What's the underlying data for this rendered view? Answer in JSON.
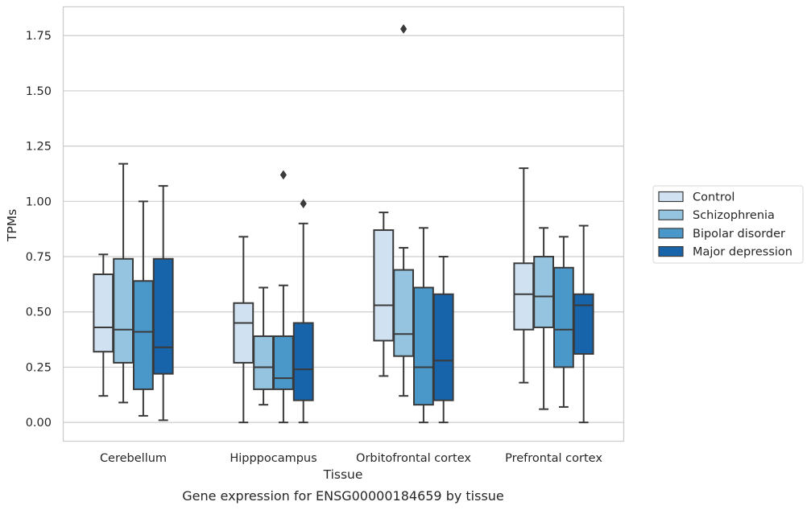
{
  "chart_data": {
    "type": "boxplot",
    "title": "Gene expression for ENSG00000184659 by tissue",
    "xlabel": "Tissue",
    "ylabel": "TPMs",
    "ylim": [
      -0.085,
      1.88
    ],
    "yticks": [
      0.0,
      0.25,
      0.5,
      0.75,
      1.0,
      1.25,
      1.5,
      1.75
    ],
    "ytick_labels": [
      "0.00",
      "0.25",
      "0.50",
      "0.75",
      "1.00",
      "1.25",
      "1.50",
      "1.75"
    ],
    "grid": true,
    "legend_position": "right",
    "categories": [
      "Cerebellum",
      "Hipppocampus",
      "Orbitofrontal cortex",
      "Prefrontal cortex"
    ],
    "series": [
      {
        "name": "Control",
        "color": "#d0e1f2",
        "boxes": [
          {
            "whislo": 0.12,
            "q1": 0.32,
            "med": 0.43,
            "q3": 0.67,
            "whishi": 0.76,
            "fliers": []
          },
          {
            "whislo": 0.0,
            "q1": 0.27,
            "med": 0.45,
            "q3": 0.54,
            "whishi": 0.84,
            "fliers": []
          },
          {
            "whislo": 0.21,
            "q1": 0.37,
            "med": 0.53,
            "q3": 0.87,
            "whishi": 0.95,
            "fliers": []
          },
          {
            "whislo": 0.18,
            "q1": 0.42,
            "med": 0.58,
            "q3": 0.72,
            "whishi": 1.15,
            "fliers": []
          }
        ]
      },
      {
        "name": "Schizophrenia",
        "color": "#94c4df",
        "boxes": [
          {
            "whislo": 0.09,
            "q1": 0.27,
            "med": 0.42,
            "q3": 0.74,
            "whishi": 1.17,
            "fliers": []
          },
          {
            "whislo": 0.08,
            "q1": 0.15,
            "med": 0.25,
            "q3": 0.39,
            "whishi": 0.61,
            "fliers": []
          },
          {
            "whislo": 0.12,
            "q1": 0.3,
            "med": 0.4,
            "q3": 0.69,
            "whishi": 0.79,
            "fliers": [
              1.78
            ]
          },
          {
            "whislo": 0.06,
            "q1": 0.43,
            "med": 0.57,
            "q3": 0.75,
            "whishi": 0.88,
            "fliers": []
          }
        ]
      },
      {
        "name": "Bipolar disorder",
        "color": "#4a98c9",
        "boxes": [
          {
            "whislo": 0.03,
            "q1": 0.15,
            "med": 0.41,
            "q3": 0.64,
            "whishi": 1.0,
            "fliers": []
          },
          {
            "whislo": 0.0,
            "q1": 0.15,
            "med": 0.2,
            "q3": 0.39,
            "whishi": 0.62,
            "fliers": [
              1.12
            ]
          },
          {
            "whislo": 0.0,
            "q1": 0.08,
            "med": 0.25,
            "q3": 0.61,
            "whishi": 0.88,
            "fliers": []
          },
          {
            "whislo": 0.07,
            "q1": 0.25,
            "med": 0.42,
            "q3": 0.7,
            "whishi": 0.84,
            "fliers": []
          }
        ]
      },
      {
        "name": "Major depression",
        "color": "#1764ab",
        "boxes": [
          {
            "whislo": 0.01,
            "q1": 0.22,
            "med": 0.34,
            "q3": 0.74,
            "whishi": 1.07,
            "fliers": []
          },
          {
            "whislo": 0.0,
            "q1": 0.1,
            "med": 0.24,
            "q3": 0.45,
            "whishi": 0.9,
            "fliers": [
              0.99
            ]
          },
          {
            "whislo": 0.0,
            "q1": 0.1,
            "med": 0.28,
            "q3": 0.58,
            "whishi": 0.75,
            "fliers": []
          },
          {
            "whislo": 0.0,
            "q1": 0.31,
            "med": 0.53,
            "q3": 0.58,
            "whishi": 0.89,
            "fliers": []
          }
        ]
      }
    ]
  }
}
